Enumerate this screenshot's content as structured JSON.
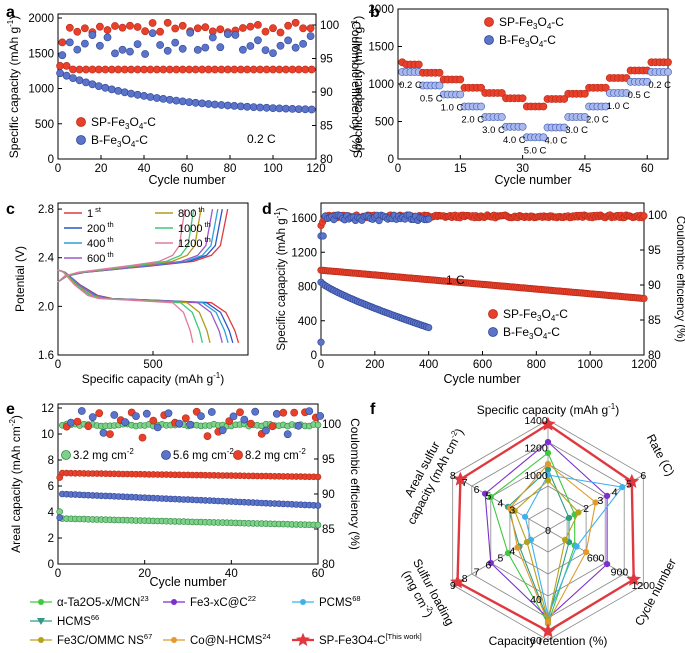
{
  "colors": {
    "sp": "#e8402a",
    "sp_dark": "#b82a18",
    "b": "#5b74c9",
    "b_light": "#a9b9ee",
    "alpha": "#3ec93e",
    "hcms": "#2e9c84",
    "fe3xc": "#7a2fd0",
    "pcms": "#3fb2ec",
    "fe3c": "#b8a11a",
    "con": "#e29a2a",
    "work": "#e0383f"
  },
  "chart_data": [
    {
      "panel": "a",
      "type": "scatter",
      "xlabel": "Cycle number",
      "ylabel": "Specific capacity (mAh g-1)",
      "y2label": "Coulombic efficiency (%)",
      "xlim": [
        0,
        120
      ],
      "ylim": [
        0,
        2100
      ],
      "y2lim": [
        80,
        102
      ],
      "xticks": [
        "0",
        "20",
        "40",
        "60",
        "80",
        "100",
        "120"
      ],
      "yticks": [
        "0",
        "500",
        "1000",
        "1500",
        "2000"
      ],
      "y2ticks": [
        "80",
        "85",
        "90",
        "95",
        "100"
      ],
      "annotation": "0.2 C",
      "legend": [
        "SP-Fe3O4-C",
        "B-Fe3O4-C"
      ],
      "series": [
        {
          "name": "SP-Fe3O4-C capacity",
          "start": 1320,
          "plateau": 1270,
          "end": 1265
        },
        {
          "name": "B-Fe3O4-C capacity",
          "start": 1230,
          "mid": 900,
          "end": 700
        },
        {
          "name": "SP-Fe3O4-C CE",
          "level": 99.8,
          "start": 95
        },
        {
          "name": "B-Fe3O4-C CE",
          "level": 97.5,
          "start": 93
        }
      ]
    },
    {
      "panel": "b",
      "type": "scatter",
      "xlabel": "Cycle number",
      "ylabel": "Specific capacity (mAh g-1)",
      "xlim": [
        0,
        65
      ],
      "ylim": [
        0,
        2000
      ],
      "xticks": [
        "0",
        "15",
        "30",
        "45",
        "60"
      ],
      "yticks": [
        "0",
        "500",
        "1000",
        "1500",
        "2000"
      ],
      "legend": [
        "SP-Fe3O4-C",
        "B-Fe3O4-C"
      ],
      "rate_labels": [
        "0.2 C",
        "0.5 C",
        "1.0 C",
        "2.0 C",
        "3.0 C",
        "4.0 C",
        "5.0 C",
        "4.0 C",
        "3.0 C",
        "2.0 C",
        "1.0 C",
        "0.5 C",
        "0.2 C"
      ],
      "sp_values": [
        1260,
        1150,
        1060,
        950,
        880,
        810,
        700,
        800,
        870,
        950,
        1080,
        1180,
        1290
      ],
      "b_values": [
        1160,
        980,
        860,
        700,
        560,
        430,
        290,
        420,
        560,
        700,
        880,
        1030,
        1160
      ]
    },
    {
      "panel": "c",
      "type": "line",
      "xlabel": "Specific capacity (mAh g-1)",
      "ylabel": "Potential (V)",
      "xlim": [
        0,
        1000
      ],
      "ylim": [
        1.6,
        2.85
      ],
      "xticks": [
        "0",
        "500"
      ],
      "yticks": [
        "1.6",
        "2.0",
        "2.4",
        "2.8"
      ],
      "legend_labels": [
        "1",
        "200",
        "400",
        "600",
        "800",
        "1000",
        "1200"
      ],
      "legend_sups": [
        "st",
        "th",
        "th",
        "th",
        "th",
        "th",
        "th"
      ],
      "end_capacities": [
        950,
        920,
        895,
        865,
        800,
        760,
        710
      ],
      "series_colors": [
        "#e0383f",
        "#2a57c8",
        "#2aa0d8",
        "#9c58c8",
        "#b39a1a",
        "#3ec97a",
        "#e07a9a"
      ]
    },
    {
      "panel": "d",
      "type": "scatter",
      "xlabel": "Cycle number",
      "ylabel": "Specific capapcity (mAh g-1)",
      "y2label": "Coulombic efficiency (%)",
      "xlim": [
        0,
        1200
      ],
      "ylim": [
        0,
        1700
      ],
      "y2lim": [
        80,
        102
      ],
      "xticks": [
        "0",
        "200",
        "400",
        "600",
        "800",
        "1000",
        "1200"
      ],
      "yticks": [
        "0",
        "400",
        "800",
        "1200",
        "1600"
      ],
      "y2ticks": [
        "80",
        "85",
        "90",
        "95",
        "100"
      ],
      "annotation": "1 C",
      "legend": [
        "SP-Fe3O4-C",
        "B-Fe3O4-C"
      ],
      "series": [
        {
          "name": "SP-Fe3O4-C capacity",
          "start": 990,
          "end": 660
        },
        {
          "name": "B-Fe3O4-C capacity",
          "start": 850,
          "end": 320,
          "last_cycle": 400
        },
        {
          "name": "CE",
          "level": 99.8
        }
      ]
    },
    {
      "panel": "e",
      "type": "scatter",
      "xlabel": "Cycle number",
      "ylabel": "Areal capacity (mAh cm-2)",
      "y2label": "Coulombic efficiency (%)",
      "xlim": [
        0,
        60
      ],
      "ylim": [
        0,
        12
      ],
      "y2lim": [
        80,
        102
      ],
      "xticks": [
        "0",
        "20",
        "40",
        "60"
      ],
      "yticks": [
        "0",
        "2",
        "4",
        "6",
        "8",
        "10",
        "12"
      ],
      "y2ticks": [
        "80",
        "85",
        "90",
        "95",
        "100"
      ],
      "legend": [
        "3.2 mg cm-2",
        "5.6 mg cm-2",
        "8.2 mg cm-2"
      ],
      "series": [
        {
          "name": "3.2 mg cm-2",
          "start": 3.5,
          "end": 3.0
        },
        {
          "name": "5.6 mg cm-2",
          "start": 5.4,
          "end": 4.5
        },
        {
          "name": "8.2 mg cm-2",
          "start": 7.0,
          "end": 6.7
        }
      ]
    },
    {
      "panel": "f",
      "type": "radar",
      "axes": [
        "Specific capacity (mAh g-1)",
        "Rate (C)",
        "Cycle number",
        "Capacity retention (%)",
        "Sulfur loading (mg cm-2)",
        "Areal sulfur capacity (mAh cm-2)"
      ],
      "axis_ticks": [
        [
          "1000",
          "1200",
          "1400"
        ],
        [
          "2",
          "3",
          "4",
          "5",
          "6"
        ],
        [
          "600",
          "900",
          "1200"
        ],
        [
          "40",
          "60"
        ],
        [
          "4",
          "5",
          "6",
          "7",
          "8",
          "9"
        ],
        [
          "3",
          "4",
          "5",
          "6",
          "7",
          "8"
        ]
      ],
      "series": [
        {
          "name": "α-Ta2O5-x/MCN",
          "ref": "23",
          "values": [
            0.7,
            0.28,
            0.28,
            0.85,
            0.42,
            0.6
          ]
        },
        {
          "name": "HCMS",
          "ref": "66",
          "values": [
            0.55,
            0.22,
            0.22,
            0.82,
            0.3,
            0.42
          ]
        },
        {
          "name": "Fe3-xC@C",
          "ref": "22",
          "values": [
            0.8,
            0.62,
            0.62,
            0.8,
            0.6,
            0.66
          ]
        },
        {
          "name": "PCMS",
          "ref": "68",
          "values": [
            0.5,
            0.78,
            0.3,
            0.78,
            0.18,
            0.24
          ]
        },
        {
          "name": "Fe3C/OMMC NS",
          "ref": "67",
          "values": [
            0.45,
            0.32,
            0.18,
            0.82,
            0.22,
            0.35
          ]
        },
        {
          "name": "Co@N-HCMS",
          "ref": "24",
          "values": [
            0.6,
            0.5,
            0.4,
            0.84,
            0.32,
            0.4
          ]
        },
        {
          "name": "SP-Fe3O4-C",
          "ref": "[This work]",
          "values": [
            0.96,
            0.88,
            0.9,
            0.92,
            0.95,
            0.92
          ]
        }
      ]
    }
  ],
  "labels": {
    "panel_a": "a",
    "panel_b": "b",
    "panel_c": "c",
    "panel_d": "d",
    "panel_e": "e",
    "panel_f": "f",
    "a_ylabel_main": "Specific capacity (mAh g",
    "a_ylabel_sup": "-1",
    "a_y2label": "Coulombic efficiency (%)",
    "b_ylabel_main": "Specific capacity (mAh g",
    "b_ylabel_sup": "-1",
    "c_xlabel_main": "Specific capacity (mAh g",
    "c_xlabel_sup": "-1",
    "d_ylabel_main": "Specific capapcity (mAh g",
    "d_ylabel_sup": "-1",
    "d_y2label": "Coulombic efficiency (%)",
    "e_ylabel_main": "Areal capacity (mAh cm",
    "e_ylabel_sup": "-2",
    "e_y2label": "Coulombic efficiency (%)",
    "legend_sp_pre": "SP-Fe",
    "legend_sp_sub1": "3",
    "legend_sp_mid": "O",
    "legend_sp_sub2": "4",
    "legend_sp_post": "-C",
    "legend_b_pre": "B-Fe",
    "legend_b_mid": "O",
    "legend_b_post": "-C",
    "e_leg_1": "3.2 mg cm",
    "e_leg_2": "5.6 mg cm",
    "e_leg_3": "8.2 mg cm",
    "e_leg_sup": "-2",
    "f_top": "Specific capacity (mAh g",
    "f_top_sup": "-1",
    "f_rate": "Rate (C)",
    "f_cycle": "Cycle number",
    "f_retention": "Capacity retention (%)",
    "f_sulfur_1": "Sulfur loading",
    "f_sulfur_2": "(mg cm",
    "f_sulfur_sup": "-2",
    "f_areal_1": "Areal sulfur",
    "f_areal_2": "capacity (mAh cm",
    "f_areal_sup": "-2"
  }
}
